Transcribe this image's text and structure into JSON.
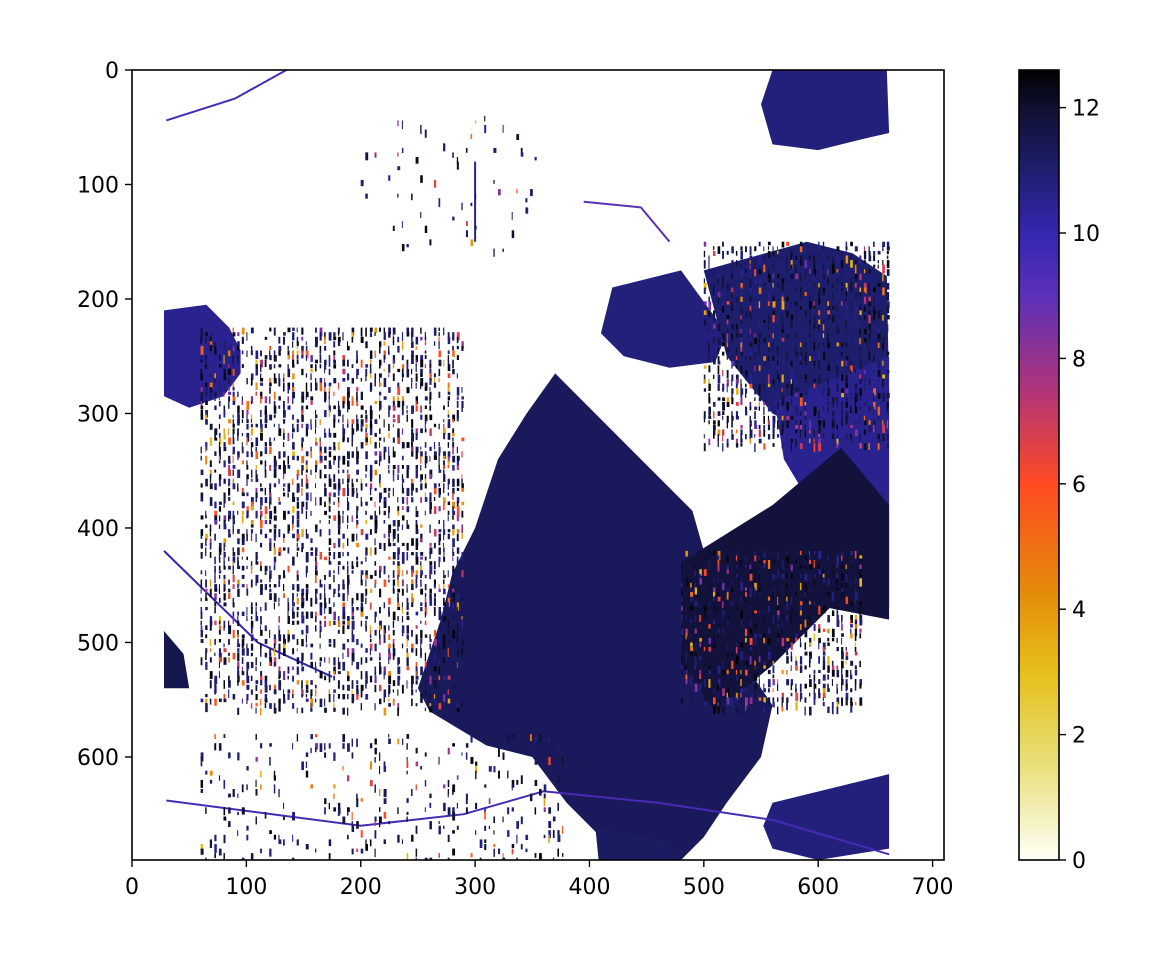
{
  "chart_data": {
    "type": "heatmap",
    "title": "",
    "xlabel": "",
    "ylabel": "",
    "xlim": [
      0,
      710
    ],
    "ylim": [
      690,
      0
    ],
    "x_ticks": [
      0,
      100,
      200,
      300,
      400,
      500,
      600,
      700
    ],
    "y_ticks": [
      0,
      100,
      200,
      300,
      400,
      500,
      600
    ],
    "x_tick_labels": [
      "0",
      "100",
      "200",
      "300",
      "400",
      "500",
      "600",
      "700"
    ],
    "y_tick_labels": [
      "0",
      "100",
      "200",
      "300",
      "400",
      "500",
      "600"
    ],
    "image_extent": {
      "x": [
        28,
        662
      ],
      "y": [
        0,
        690
      ]
    },
    "colorbar": {
      "range": [
        0,
        12.6
      ],
      "ticks": [
        0,
        2,
        4,
        6,
        8,
        10,
        12
      ],
      "tick_labels": [
        "0",
        "2",
        "4",
        "6",
        "8",
        "10",
        "12"
      ],
      "colormap": "CMRmap_r",
      "stops": [
        {
          "v": 0.0,
          "color": "#fffff8"
        },
        {
          "v": 1.5,
          "color": "#e8e07a"
        },
        {
          "v": 3.0,
          "color": "#e6bf1a"
        },
        {
          "v": 4.3,
          "color": "#e58a0a"
        },
        {
          "v": 6.0,
          "color": "#ff4a22"
        },
        {
          "v": 7.5,
          "color": "#b0347a"
        },
        {
          "v": 9.0,
          "color": "#5b30b8"
        },
        {
          "v": 10.0,
          "color": "#3426b0"
        },
        {
          "v": 11.0,
          "color": "#1e1e6e"
        },
        {
          "v": 12.0,
          "color": "#0f0f30"
        },
        {
          "v": 12.6,
          "color": "#000000"
        }
      ]
    },
    "regions": [
      {
        "name": "top-right-field",
        "value": 10.8,
        "points": [
          [
            560,
            0
          ],
          [
            660,
            0
          ],
          [
            662,
            55
          ],
          [
            640,
            60
          ],
          [
            600,
            70
          ],
          [
            560,
            65
          ],
          [
            550,
            30
          ]
        ]
      },
      {
        "name": "left-small-field",
        "value": 10.5,
        "points": [
          [
            28,
            210
          ],
          [
            65,
            205
          ],
          [
            85,
            225
          ],
          [
            95,
            245
          ],
          [
            95,
            265
          ],
          [
            80,
            285
          ],
          [
            50,
            295
          ],
          [
            28,
            285
          ]
        ]
      },
      {
        "name": "left-bottom-strip",
        "value": 11.5,
        "points": [
          [
            28,
            490
          ],
          [
            45,
            510
          ],
          [
            50,
            540
          ],
          [
            28,
            540
          ]
        ]
      },
      {
        "name": "central-large-field",
        "value": 11.3,
        "points": [
          [
            370,
            265
          ],
          [
            470,
            365
          ],
          [
            490,
            385
          ],
          [
            500,
            420
          ],
          [
            520,
            460
          ],
          [
            530,
            510
          ],
          [
            560,
            555
          ],
          [
            550,
            600
          ],
          [
            520,
            640
          ],
          [
            500,
            670
          ],
          [
            480,
            690
          ],
          [
            420,
            680
          ],
          [
            380,
            640
          ],
          [
            350,
            600
          ],
          [
            310,
            590
          ],
          [
            260,
            560
          ],
          [
            250,
            540
          ],
          [
            270,
            480
          ],
          [
            280,
            440
          ],
          [
            300,
            400
          ],
          [
            320,
            340
          ],
          [
            345,
            300
          ]
        ]
      },
      {
        "name": "upper-middle-field",
        "value": 10.8,
        "points": [
          [
            420,
            190
          ],
          [
            480,
            175
          ],
          [
            520,
            230
          ],
          [
            510,
            255
          ],
          [
            470,
            260
          ],
          [
            430,
            250
          ],
          [
            410,
            230
          ]
        ]
      },
      {
        "name": "northeast-field",
        "value": 11.0,
        "points": [
          [
            500,
            175
          ],
          [
            590,
            150
          ],
          [
            630,
            160
          ],
          [
            660,
            180
          ],
          [
            662,
            280
          ],
          [
            640,
            310
          ],
          [
            600,
            320
          ],
          [
            560,
            300
          ],
          [
            520,
            250
          ]
        ]
      },
      {
        "name": "east-long-field",
        "value": 10.5,
        "points": [
          [
            562,
            290
          ],
          [
            662,
            250
          ],
          [
            662,
            470
          ],
          [
            640,
            430
          ],
          [
            600,
            390
          ],
          [
            570,
            340
          ]
        ]
      },
      {
        "name": "east-lower-field",
        "value": 11.8,
        "points": [
          [
            480,
            430
          ],
          [
            560,
            380
          ],
          [
            620,
            330
          ],
          [
            662,
            380
          ],
          [
            662,
            480
          ],
          [
            610,
            470
          ],
          [
            560,
            520
          ],
          [
            510,
            560
          ],
          [
            480,
            520
          ]
        ]
      },
      {
        "name": "bottom-right-field",
        "value": 10.8,
        "points": [
          [
            560,
            640
          ],
          [
            662,
            615
          ],
          [
            662,
            680
          ],
          [
            600,
            690
          ],
          [
            560,
            680
          ],
          [
            552,
            660
          ]
        ]
      },
      {
        "name": "bottom-center-patch",
        "value": 11.2,
        "points": [
          [
            405,
            660
          ],
          [
            470,
            675
          ],
          [
            480,
            690
          ],
          [
            408,
            690
          ]
        ]
      }
    ],
    "speckle_zones": [
      {
        "name": "west-crop-field",
        "x": [
          60,
          290
        ],
        "y": [
          225,
          560
        ],
        "density": 0.45
      },
      {
        "name": "northeast-stripes",
        "x": [
          500,
          662
        ],
        "y": [
          150,
          330
        ],
        "density": 0.5
      },
      {
        "name": "east-lower-stripes",
        "x": [
          480,
          640
        ],
        "y": [
          420,
          560
        ],
        "density": 0.45
      },
      {
        "name": "south-village",
        "x": [
          60,
          380
        ],
        "y": [
          580,
          690
        ],
        "density": 0.12
      },
      {
        "name": "north-scatter",
        "x": [
          200,
          360
        ],
        "y": [
          40,
          160
        ],
        "density": 0.05
      }
    ],
    "lines": [
      {
        "name": "north-road",
        "value": 9.5,
        "points": [
          [
            30,
            44
          ],
          [
            90,
            25
          ],
          [
            135,
            0
          ]
        ]
      },
      {
        "name": "central-track",
        "value": 10.5,
        "points": [
          [
            300,
            80
          ],
          [
            300,
            150
          ]
        ]
      },
      {
        "name": "diagonal-road",
        "value": 10.0,
        "points": [
          [
            28,
            420
          ],
          [
            110,
            500
          ],
          [
            175,
            530
          ]
        ]
      },
      {
        "name": "south-road",
        "value": 9.5,
        "points": [
          [
            30,
            638
          ],
          [
            200,
            660
          ],
          [
            290,
            650
          ],
          [
            360,
            630
          ],
          [
            460,
            640
          ],
          [
            560,
            655
          ],
          [
            662,
            685
          ]
        ]
      },
      {
        "name": "upper-track",
        "value": 9.0,
        "points": [
          [
            395,
            115
          ],
          [
            445,
            120
          ],
          [
            470,
            150
          ]
        ]
      }
    ]
  }
}
